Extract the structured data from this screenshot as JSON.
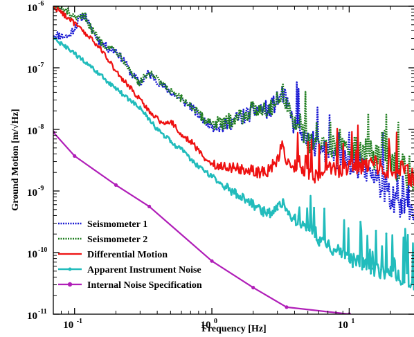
{
  "chart_data": {
    "type": "line",
    "x_scale": "log",
    "y_scale": "log",
    "xlabel": "Frequency [Hz]",
    "ylabel": "Ground Motion [m/√Hz]",
    "xlim": [
      0.07,
      30
    ],
    "ylim": [
      1e-11,
      1e-06
    ],
    "legend_position": "bottom-left",
    "x_ticks": [
      {
        "value": 0.1,
        "base": "10",
        "exp": "-1"
      },
      {
        "value": 1,
        "base": "10",
        "exp": "0"
      },
      {
        "value": 10,
        "base": "10",
        "exp": "1"
      }
    ],
    "y_ticks": [
      {
        "value": 1e-06,
        "base": "10",
        "exp": "-6"
      },
      {
        "value": 1e-07,
        "base": "10",
        "exp": "-7"
      },
      {
        "value": 1e-08,
        "base": "10",
        "exp": "-8"
      },
      {
        "value": 1e-09,
        "base": "10",
        "exp": "-9"
      },
      {
        "value": 1e-10,
        "base": "10",
        "exp": "-10"
      },
      {
        "value": 1e-11,
        "base": "10",
        "exp": "-11"
      }
    ],
    "series": [
      {
        "name": "Seismometer 1",
        "color": "#1414d2",
        "dash": "2,1.5",
        "width": 2.5,
        "marker": false,
        "noise": 0.22,
        "x": [
          0.07,
          0.09,
          0.1,
          0.11,
          0.12,
          0.13,
          0.15,
          0.18,
          0.2,
          0.23,
          0.26,
          0.3,
          0.34,
          0.38,
          0.42,
          0.5,
          0.6,
          0.7,
          0.8,
          0.9,
          1,
          1.2,
          1.5,
          1.7,
          2,
          2.3,
          2.6,
          3,
          3.3,
          3.6,
          4,
          5,
          6,
          7,
          8,
          10,
          12,
          15,
          20,
          25,
          30
        ],
        "y": [
          3.5e-07,
          3.2e-07,
          4.5e-07,
          6.5e-07,
          7e-07,
          4.5e-07,
          2.8e-07,
          2e-07,
          1.9e-07,
          1.3e-07,
          8e-08,
          5.5e-08,
          8e-08,
          7e-08,
          5.5e-08,
          4e-08,
          3e-08,
          2.4e-08,
          1.7e-08,
          1.3e-08,
          1.2e-08,
          1.1e-08,
          1.5e-08,
          1.6e-08,
          2e-08,
          2.2e-08,
          2e-08,
          3e-08,
          3.8e-08,
          2.2e-08,
          1.1e-08,
          6e-09,
          5e-09,
          4.2e-09,
          3.6e-09,
          3e-09,
          2.3e-09,
          1.7e-09,
          8e-10,
          4.2e-10,
          3.2e-10
        ]
      },
      {
        "name": "Seismometer 2",
        "color": "#1e7d1e",
        "dash": "2,1.5",
        "width": 2.5,
        "marker": false,
        "noise": 0.22,
        "x": [
          0.07,
          0.09,
          0.1,
          0.11,
          0.12,
          0.13,
          0.15,
          0.18,
          0.2,
          0.23,
          0.26,
          0.3,
          0.34,
          0.38,
          0.42,
          0.5,
          0.6,
          0.7,
          0.8,
          0.9,
          1,
          1.2,
          1.5,
          1.7,
          2,
          2.3,
          2.6,
          3,
          3.3,
          3.6,
          4,
          5,
          6,
          7,
          8,
          10,
          12,
          15,
          20,
          25,
          30
        ],
        "y": [
          1e-06,
          8e-07,
          6e-07,
          6.5e-07,
          7e-07,
          4.6e-07,
          2.9e-07,
          2.1e-07,
          1.95e-07,
          1.35e-07,
          8.2e-08,
          5.6e-08,
          8.2e-08,
          7.2e-08,
          5.7e-08,
          4.1e-08,
          3.1e-08,
          2.5e-08,
          1.8e-08,
          1.4e-08,
          1.3e-08,
          1.2e-08,
          1.6e-08,
          1.7e-08,
          2.1e-08,
          2.3e-08,
          2.1e-08,
          3.1e-08,
          3.9e-08,
          2.3e-08,
          1.2e-08,
          6.5e-09,
          6e-09,
          5.5e-09,
          5e-09,
          5e-09,
          4.5e-09,
          3.8e-09,
          3e-09,
          2.2e-09,
          1.5e-09
        ]
      },
      {
        "name": "Differential Motion",
        "color": "#ee1111",
        "dash": "",
        "width": 2.2,
        "marker": false,
        "noise": 0.15,
        "x": [
          0.07,
          0.09,
          0.1,
          0.12,
          0.15,
          0.18,
          0.2,
          0.25,
          0.3,
          0.35,
          0.4,
          0.45,
          0.5,
          0.6,
          0.7,
          0.8,
          0.9,
          1,
          1.2,
          1.5,
          2,
          2.5,
          3,
          3.2,
          3.4,
          3.6,
          4,
          5,
          5.5,
          6,
          7,
          8,
          10,
          12,
          15,
          20,
          25,
          30
        ],
        "y": [
          1e-06,
          6.5e-07,
          5.2e-07,
          3.6e-07,
          2.2e-07,
          1.3e-07,
          8.5e-08,
          5e-08,
          3e-08,
          2e-08,
          1.5e-08,
          1.2e-08,
          1.4e-08,
          8e-09,
          6.5e-09,
          4.5e-09,
          3.2e-09,
          2.8e-09,
          2.5e-09,
          2.4e-09,
          2.1e-09,
          2e-09,
          3.2e-09,
          5.5e-09,
          4e-09,
          2.6e-09,
          2.6e-09,
          1.8e-09,
          1.6e-09,
          2e-09,
          2.8e-09,
          2.2e-09,
          2.5e-09,
          2.6e-09,
          2.8e-09,
          2e-09,
          2.3e-09,
          1.4e-09
        ]
      },
      {
        "name": "Apparent Instrument Noise",
        "color": "#22bcbc",
        "dash": "",
        "width": 2.6,
        "marker": true,
        "marker_size": 1.9,
        "noise": 0.12,
        "x": [
          0.07,
          0.1,
          0.15,
          0.2,
          0.3,
          0.4,
          0.5,
          0.55,
          0.6,
          0.7,
          0.8,
          1,
          1.5,
          2,
          2.5,
          3,
          3.3,
          3.6,
          4,
          5,
          6,
          7,
          8,
          10,
          15,
          20,
          25,
          30
        ],
        "y": [
          3e-07,
          1.7e-07,
          8e-08,
          4.6e-08,
          2.2e-08,
          1e-08,
          6.5e-09,
          5.2e-09,
          5e-09,
          3.2e-09,
          2.5e-09,
          1.7e-09,
          9e-10,
          6e-10,
          4.3e-10,
          5e-10,
          7e-10,
          4.2e-10,
          3.5e-10,
          2.6e-10,
          1.6e-10,
          1.3e-10,
          1.1e-10,
          8e-11,
          5.5e-11,
          4.5e-11,
          3.8e-11,
          3e-11
        ]
      },
      {
        "name": "Internal Noise Specification",
        "color": "#b01eb8",
        "dash": "",
        "width": 2.2,
        "marker": true,
        "marker_size": 2.6,
        "noise": 0,
        "x": [
          0.07,
          0.1,
          0.2,
          0.35,
          1,
          2,
          3.5,
          10,
          20
        ],
        "y": [
          9e-09,
          3.7e-09,
          1.25e-09,
          5.6e-10,
          7.3e-11,
          2.7e-11,
          1.3e-11,
          1e-11,
          5.2e-12
        ]
      }
    ]
  }
}
